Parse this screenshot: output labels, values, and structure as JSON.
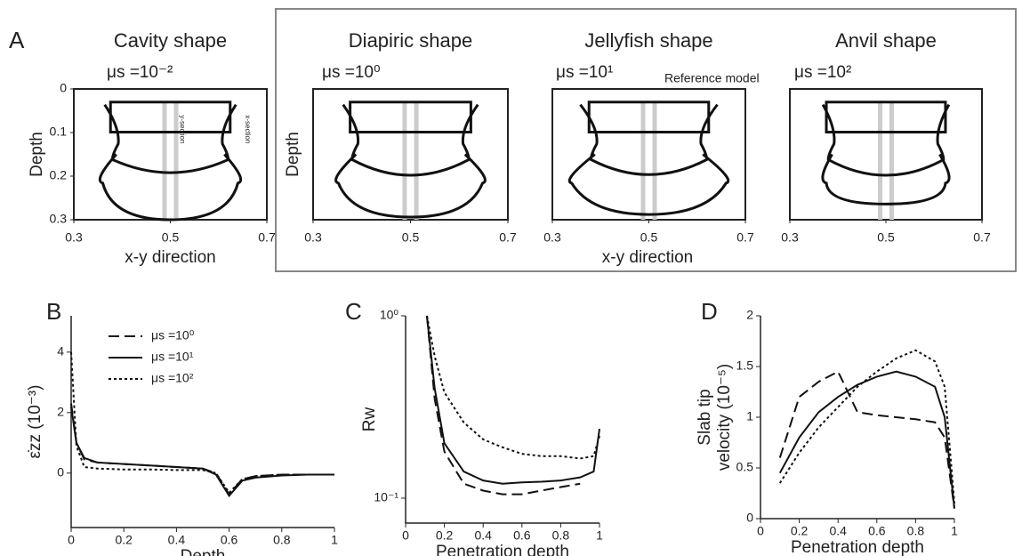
{
  "panel_labels": [
    "A",
    "B",
    "C",
    "D"
  ],
  "chart_data": [
    {
      "type": "shape",
      "title": "Cavity shape",
      "subtitle": "μs =10⁻²",
      "ylabel": "Depth",
      "xlabel": "x-y direction",
      "annotations": [
        "y-section",
        "x-section"
      ],
      "xlim": [
        0.3,
        0.7
      ],
      "xticks": [
        0.3,
        0.5,
        0.7
      ],
      "ylim": [
        0,
        0.3
      ],
      "yticks": [
        0,
        0.1,
        0.2,
        0.3
      ],
      "y_inverted": true
    },
    {
      "type": "shape",
      "title": "Diapiric shape",
      "subtitle": "μs =10⁰",
      "ylabel": "Depth",
      "xlim": [
        0.3,
        0.7
      ],
      "xticks": [
        0.3,
        0.5,
        0.7
      ]
    },
    {
      "type": "shape",
      "title": "Jellyfish shape",
      "subtitle": "μs =10¹",
      "annotations": [
        "Reference model"
      ],
      "xlabel": "x-y direction",
      "xlim": [
        0.3,
        0.7
      ],
      "xticks": [
        0.3,
        0.5,
        0.7
      ]
    },
    {
      "type": "shape",
      "title": "Anvil shape",
      "subtitle": "μs =10²",
      "xlim": [
        0.3,
        0.7
      ],
      "xticks": [
        0.3,
        0.5,
        0.7
      ]
    },
    {
      "type": "line",
      "xlabel": "Depth",
      "ylabel": [
        "ε̇zz (10⁻³)"
      ],
      "legend": true,
      "x": [
        0,
        0.02,
        0.05,
        0.1,
        0.2,
        0.3,
        0.4,
        0.5,
        0.55,
        0.6,
        0.65,
        0.7,
        0.8,
        0.9,
        1
      ],
      "xlim": [
        0,
        1
      ],
      "xticks": [
        0,
        0.2,
        0.4,
        0.6,
        0.8,
        1
      ],
      "ylim": [
        -1.8,
        5.2
      ],
      "yticks": [
        0,
        2,
        4
      ],
      "series": [
        {
          "name": "μs =10⁰",
          "dash": "dashed",
          "color": "#111",
          "values": [
            2.3,
            1.0,
            0.45,
            0.35,
            0.3,
            0.25,
            0.2,
            0.15,
            0.0,
            -0.7,
            -0.2,
            -0.1,
            -0.05,
            -0.05,
            -0.05
          ]
        },
        {
          "name": "μs =10¹",
          "dash": "solid",
          "color": "#111",
          "values": [
            2.2,
            1.0,
            0.5,
            0.35,
            0.3,
            0.25,
            0.2,
            0.15,
            -0.05,
            -0.75,
            -0.25,
            -0.15,
            -0.08,
            -0.05,
            -0.05
          ]
        },
        {
          "name": "μs =10²",
          "dash": "dotted",
          "color": "#111",
          "values": [
            4.0,
            0.9,
            0.2,
            0.15,
            0.12,
            0.12,
            0.1,
            0.1,
            0.0,
            -0.65,
            -0.2,
            -0.1,
            -0.05,
            -0.05,
            -0.05
          ]
        }
      ]
    },
    {
      "type": "line",
      "xlabel": "Penetration depth",
      "ylabel": [
        "Rw"
      ],
      "log_y": true,
      "x": [
        0.11,
        0.15,
        0.2,
        0.3,
        0.4,
        0.5,
        0.6,
        0.7,
        0.8,
        0.9,
        0.97,
        1
      ],
      "xlim": [
        0,
        1
      ],
      "xticks": [
        0,
        0.2,
        0.4,
        0.6,
        0.8,
        1
      ],
      "ylim": [
        0.073,
        1
      ],
      "yticks": [
        {
          "value": 0.1,
          "label": "10⁻¹"
        },
        {
          "value": 1,
          "label": "10⁰"
        }
      ],
      "series": [
        {
          "dash": "dashed",
          "color": "#111",
          "values": [
            1,
            0.35,
            0.18,
            0.12,
            0.11,
            0.105,
            0.105,
            0.11,
            0.115,
            0.12,
            null,
            null
          ]
        },
        {
          "dash": "solid",
          "color": "#111",
          "values": [
            1,
            0.4,
            0.2,
            0.14,
            0.125,
            0.12,
            0.122,
            0.123,
            0.125,
            0.13,
            0.14,
            0.24
          ]
        },
        {
          "dash": "dotted",
          "color": "#111",
          "values": [
            1,
            0.6,
            0.38,
            0.26,
            0.21,
            0.19,
            0.175,
            0.17,
            0.17,
            0.165,
            0.17,
            0.22
          ]
        }
      ]
    },
    {
      "type": "line",
      "xlabel": "Penetration depth",
      "ylabel": [
        "Slab tip",
        "velocity (10⁻⁵)"
      ],
      "x": [
        0.1,
        0.2,
        0.3,
        0.4,
        0.5,
        0.6,
        0.7,
        0.8,
        0.9,
        0.95,
        1
      ],
      "xlim": [
        0,
        1
      ],
      "xticks": [
        0,
        0.2,
        0.4,
        0.6,
        0.8,
        1
      ],
      "ylim": [
        0,
        2
      ],
      "yticks": [
        0,
        0.5,
        1,
        1.5,
        2
      ],
      "series": [
        {
          "dash": "dashed",
          "color": "#111",
          "values": [
            0.6,
            1.2,
            1.35,
            1.45,
            1.05,
            1.02,
            1.0,
            0.98,
            0.95,
            0.8,
            0.1
          ]
        },
        {
          "dash": "solid",
          "color": "#111",
          "values": [
            0.45,
            0.8,
            1.05,
            1.2,
            1.32,
            1.4,
            1.45,
            1.4,
            1.3,
            1.0,
            0.1
          ]
        },
        {
          "dash": "dotted",
          "color": "#111",
          "values": [
            0.35,
            0.65,
            0.9,
            1.1,
            1.3,
            1.45,
            1.58,
            1.66,
            1.55,
            1.3,
            0.15
          ]
        }
      ]
    }
  ]
}
